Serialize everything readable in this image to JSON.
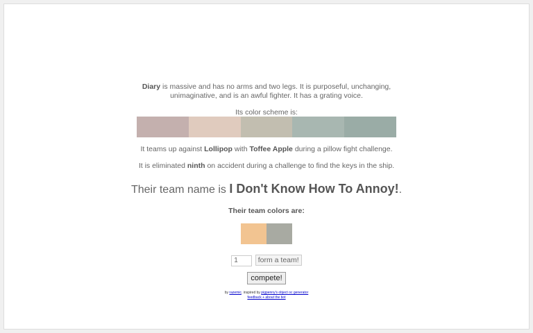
{
  "description": {
    "name": "Diary",
    "line1_rest": "is massive and has no arms and two legs. It is purposeful, unchanging,",
    "line2": "unimaginative, and is an awful fighter. It has a grating voice."
  },
  "scheme_label": "Its color scheme is:",
  "scheme_colors": [
    "#c4b0ae",
    "#e0cbbe",
    "#c2beb0",
    "#a8b7b1",
    "#9aaca6"
  ],
  "teamup": {
    "pre": "It teams up against",
    "opponent": "Lollipop",
    "mid": "with",
    "partner": "Toffee Apple",
    "post": "during a pillow fight challenge."
  },
  "elim": {
    "pre": "It is eliminated",
    "place": "ninth",
    "post": "on accident during a challenge to find the keys in the ship."
  },
  "teamname": {
    "pre": "Their team name is",
    "name": "I Don't Know How To Annoy!",
    "post": "."
  },
  "team_colors_label": "Their team colors are:",
  "team_colors": [
    "#f2c491",
    "#a8aaa2"
  ],
  "form": {
    "value": "1",
    "button": "form a team!"
  },
  "compete": "compete!",
  "footer": {
    "by": "by",
    "author": "razemic",
    "inspired": ". inspired by",
    "inspired_link": "pigpenny's object oc generator",
    "feedback": "feedback + about the bot"
  }
}
